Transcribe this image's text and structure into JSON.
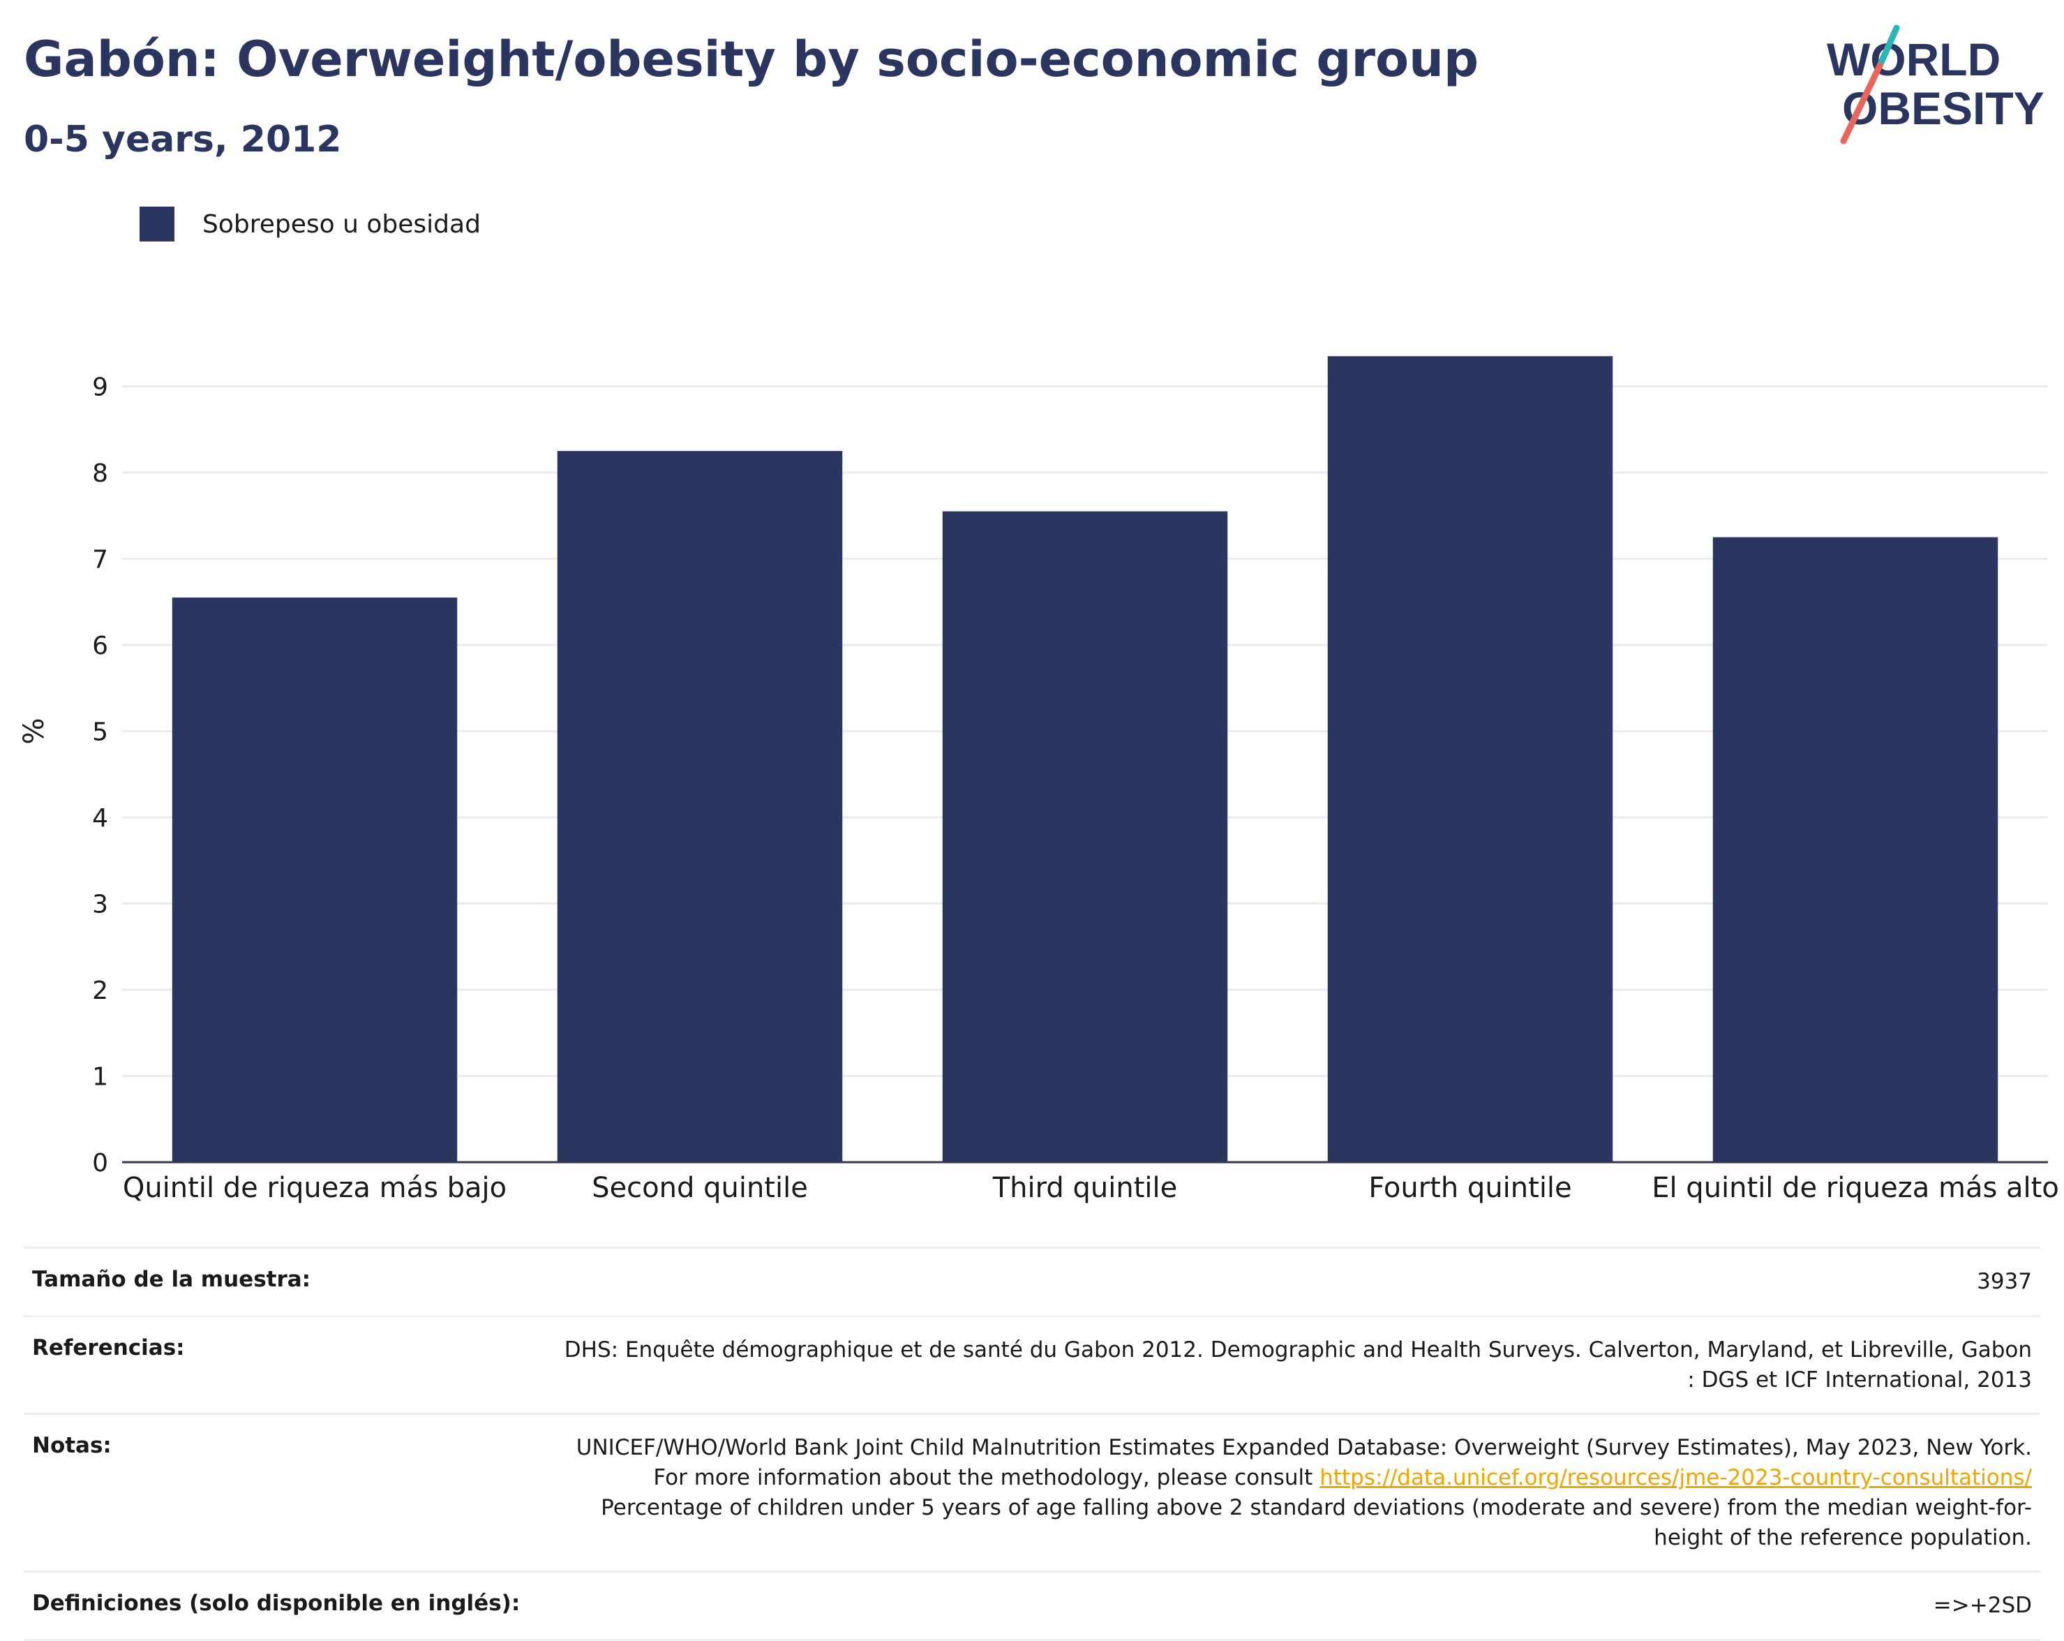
{
  "header": {
    "title": "Gabón: Overweight/obesity by socio-economic group",
    "subtitle": "0-5 years, 2012"
  },
  "logo": {
    "line1": "WORLD",
    "line2": "OBESITY"
  },
  "colors": {
    "bar": "#2a365f",
    "title": "#2a365f",
    "link": "#f0a500",
    "logo_teal": "#2cb5b5",
    "logo_coral": "#e8675a"
  },
  "chart_data": {
    "type": "bar",
    "categories": [
      "Quintil de riqueza más bajo",
      "Second quintile",
      "Third quintile",
      "Fourth quintile",
      "El quintil de riqueza más alto"
    ],
    "series": [
      {
        "name": "Sobrepeso u obesidad",
        "values": [
          6.55,
          8.25,
          7.55,
          9.35,
          7.25
        ]
      }
    ],
    "ylabel": "%",
    "ylim": [
      0,
      10
    ],
    "yticks": [
      0,
      1,
      2,
      3,
      4,
      5,
      6,
      7,
      8,
      9
    ],
    "grid": true,
    "legend": "top-left"
  },
  "info": {
    "sample_label": "Tamaño de la muestra:",
    "sample_value": "3937",
    "refs_label": "Referencias:",
    "refs_value": "DHS: Enquête démographique et de santé du Gabon 2012. Demographic and Health Surveys. Calverton, Maryland, et Libreville, Gabon : DGS et ICF International, 2013",
    "notes_label": "Notas:",
    "notes_text1": "UNICEF/WHO/World Bank Joint Child Malnutrition Estimates Expanded Database: Overweight (Survey Estimates), May 2023, New York. For more information about the methodology, please consult ",
    "notes_link": "https://data.unicef.org/resources/jme-2023-country-consultations/",
    "notes_text2": " Percentage of children under 5 years of age falling above 2 standard deviations (moderate and severe) from the median weight-for-height of the reference population.",
    "defs_label": "Definiciones (solo disponible en inglés):",
    "defs_value": "=>+2SD"
  }
}
